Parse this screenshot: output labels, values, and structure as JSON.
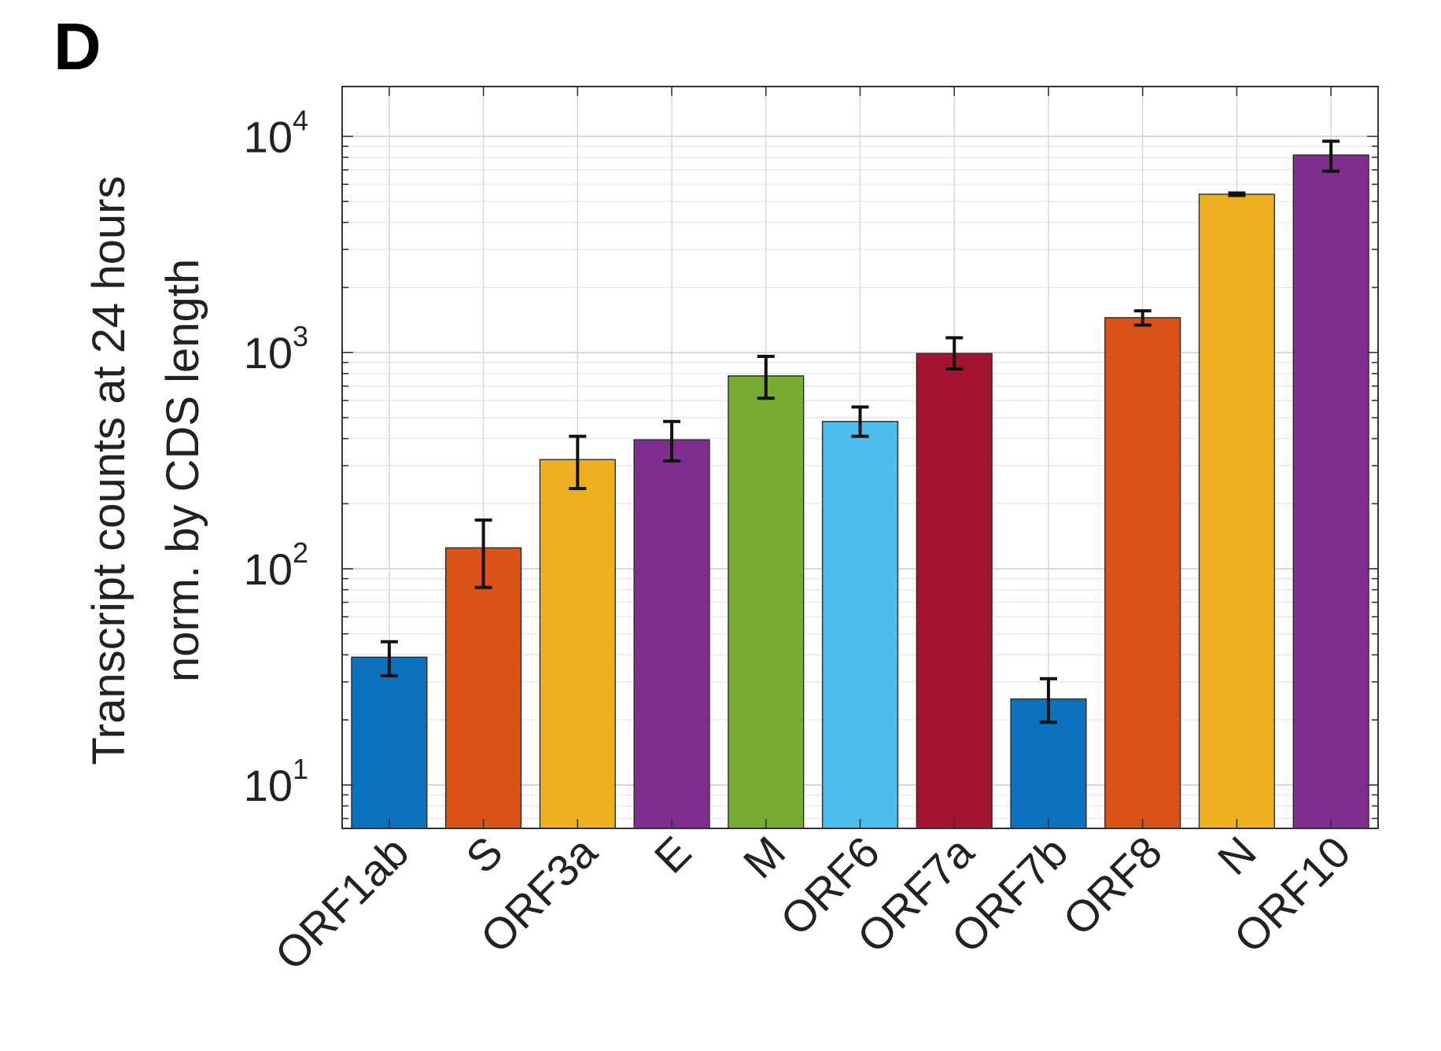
{
  "panel_label": "D",
  "chart_data": {
    "type": "bar",
    "yscale": "log",
    "ylabel_lines": [
      "Transcript counts at 24 hours",
      "norm. by CDS length"
    ],
    "ylim": [
      6.3,
      17000
    ],
    "yticks": [
      {
        "base": "10",
        "exp": "1",
        "value": 10
      },
      {
        "base": "10",
        "exp": "2",
        "value": 100
      },
      {
        "base": "10",
        "exp": "3",
        "value": 1000
      },
      {
        "base": "10",
        "exp": "4",
        "value": 10000
      }
    ],
    "grid": true,
    "categories": [
      "ORF1ab",
      "S",
      "ORF3a",
      "E",
      "M",
      "ORF6",
      "ORF7a",
      "ORF7b",
      "ORF8",
      "N",
      "ORF10"
    ],
    "values": [
      39,
      125,
      320,
      395,
      780,
      480,
      990,
      25,
      1450,
      5400,
      8200
    ],
    "err_low": [
      32,
      82,
      235,
      315,
      615,
      410,
      840,
      19.5,
      1340,
      5330,
      6900
    ],
    "err_high": [
      46,
      168,
      410,
      480,
      960,
      560,
      1170,
      31,
      1560,
      5470,
      9500
    ],
    "colors": [
      "#0b72bd",
      "#d95319",
      "#edb120",
      "#7e2f8e",
      "#77ac30",
      "#4dbeee",
      "#a2142f",
      "#0b72bd",
      "#d95319",
      "#edb120",
      "#7e2f8e"
    ]
  }
}
